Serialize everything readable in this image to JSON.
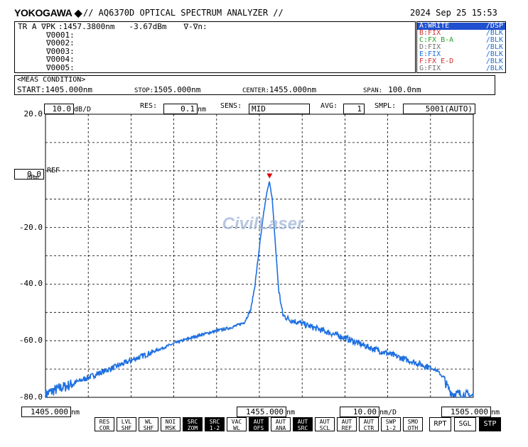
{
  "header": {
    "brand": "YOKOGAWA",
    "title": "// AQ6370D OPTICAL SPECTRUM ANALYZER //",
    "datetime": "2024 Sep 25 15:53"
  },
  "marker": {
    "line1_prefix": "TR A ∇PK",
    "wavelength": ":1457.3800nm",
    "level": "-3.67dBm",
    "delta": "∇-∇n:",
    "list": [
      "∇0001:",
      "∇0002:",
      "∇0003:",
      "∇0004:",
      "∇0005:"
    ]
  },
  "traces": [
    {
      "name": "A:WRITE",
      "mode": "/DSP",
      "color": "#ffffff",
      "selected": true
    },
    {
      "name": "B:FIX",
      "mode": "/BLK",
      "color": "#d03030",
      "selected": false
    },
    {
      "name": "C:FX B-A",
      "mode": "/BLK",
      "color": "#20a020",
      "selected": false
    },
    {
      "name": "D:FIX",
      "mode": "/BLK",
      "color": "#707070",
      "selected": false
    },
    {
      "name": "E:FIX",
      "mode": "/BLK",
      "color": "#2070d0",
      "selected": false
    },
    {
      "name": "F:FX E-D",
      "mode": "/BLK",
      "color": "#d03030",
      "selected": false
    },
    {
      "name": "G:FIX",
      "mode": "/BLK",
      "color": "#707070",
      "selected": false
    }
  ],
  "meas": {
    "title": "<MEAS CONDITION>",
    "start": "START:1405.000nm",
    "stop_label": "STOP:",
    "stop": "1505.000nm",
    "center_label": "CENTER:",
    "center": "1455.000nm",
    "span_label": "SPAN:",
    "span": "100.0nm"
  },
  "settings": {
    "scale": "10.0",
    "scale_unit": "dB/D",
    "res_label": "RES:",
    "res": "0.1",
    "res_unit": "nm",
    "sens_label": "SENS:",
    "sens": "MID",
    "avg_label": "AVG:",
    "avg": "1",
    "smpl_label": "SMPL:",
    "smpl": "5001(AUTO)",
    "ref_value": "0.0",
    "ref_label": "REF",
    "ref_unit": "dBm"
  },
  "bottom": {
    "start": "1405.000",
    "center": "1455.000",
    "xscale": "10.00",
    "xscale_unit": "nm/D",
    "stop": "1505.000",
    "unit": "nm"
  },
  "watermark": "CivilLaser",
  "softkeys": [
    {
      "top": "RES",
      "bot": "COR",
      "inv": false
    },
    {
      "top": "LVL",
      "bot": "SHF",
      "inv": false
    },
    {
      "top": "WL",
      "bot": "SHF",
      "inv": false
    },
    {
      "top": "NOI",
      "bot": "MSK",
      "inv": false
    },
    {
      "top": "SRC",
      "bot": "ZOM",
      "inv": true
    },
    {
      "top": "SRC",
      "bot": "1-2",
      "inv": true
    },
    {
      "top": "VAC",
      "bot": "WL",
      "inv": false
    },
    {
      "top": "AUT",
      "bot": "OFS",
      "inv": true
    },
    {
      "top": "AUT",
      "bot": "ANA",
      "inv": false
    },
    {
      "top": "AUT",
      "bot": "SRC",
      "inv": true
    },
    {
      "top": "AUT",
      "bot": "SCL",
      "inv": false
    },
    {
      "top": "AUT",
      "bot": "REF",
      "inv": false
    },
    {
      "top": "AUT",
      "bot": "CTR",
      "inv": false
    },
    {
      "top": "SWP",
      "bot": "1-2",
      "inv": false
    },
    {
      "top": "SMO",
      "bot": "OTH",
      "inv": false
    }
  ],
  "buttons": [
    {
      "label": "RPT",
      "inv": false
    },
    {
      "label": "SGL",
      "inv": false
    },
    {
      "label": "STP",
      "inv": true
    }
  ],
  "chart_data": {
    "type": "line",
    "xlim": [
      1405.0,
      1505.0
    ],
    "ylim": [
      -80.0,
      20.0
    ],
    "xunit": "nm",
    "yunit": "dBm",
    "y_ticks": [
      {
        "value": 20,
        "label": "20.0"
      },
      {
        "value": -20,
        "label": "-20.0"
      },
      {
        "value": -40,
        "label": "-40.0"
      },
      {
        "value": -60,
        "label": "-60.0"
      },
      {
        "value": -80,
        "label": "-80.0"
      }
    ],
    "grid": true,
    "trace_color": "#1e6fe0",
    "peak_marker": {
      "x": 1457.38,
      "y": -3.67,
      "color": "#e00000"
    },
    "series": [
      {
        "x": [
          1405.0,
          1407.0,
          1410.0,
          1415.0,
          1420.0,
          1425.0,
          1430.0,
          1435.0,
          1440.0,
          1445.0,
          1448.0,
          1450.0,
          1451.5,
          1453.0,
          1454.0,
          1455.0,
          1456.0,
          1456.7,
          1457.38,
          1458.0,
          1458.7,
          1459.5,
          1460.5,
          1462.0,
          1465.0,
          1470.0,
          1475.0,
          1480.0,
          1485.0,
          1490.0,
          1495.0,
          1496.5,
          1498.0,
          1499.0,
          1500.0,
          1502.0,
          1505.0
        ],
        "y": [
          -79.0,
          -77.5,
          -76.0,
          -73.0,
          -70.0,
          -67.0,
          -64.0,
          -61.0,
          -58.5,
          -56.5,
          -55.5,
          -54.5,
          -53.5,
          -49.0,
          -40.0,
          -27.0,
          -15.0,
          -8.0,
          -3.67,
          -10.0,
          -25.0,
          -42.0,
          -51.0,
          -52.5,
          -54.0,
          -56.5,
          -59.0,
          -62.0,
          -64.5,
          -67.0,
          -69.5,
          -70.5,
          -73.0,
          -76.5,
          -78.5,
          -79.0,
          -79.5
        ]
      }
    ]
  }
}
